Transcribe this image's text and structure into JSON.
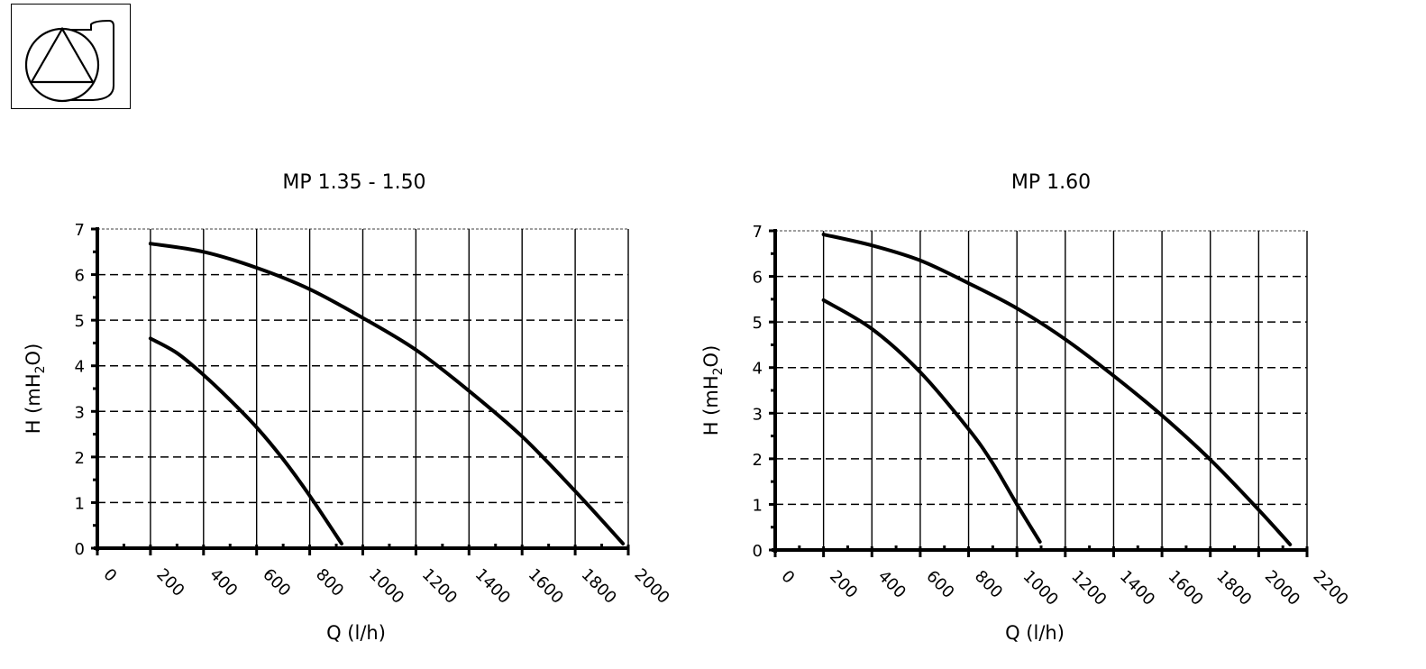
{
  "logo": {
    "icon": "pump-symbol-icon"
  },
  "chart_data": [
    {
      "type": "line",
      "title": "MP 1.35 - 1.50",
      "xlabel": "Q (l/h)",
      "ylabel_main": "H (mH",
      "ylabel_sub": "2",
      "ylabel_end": "O)",
      "xlim": [
        0,
        2000
      ],
      "ylim": [
        0,
        7
      ],
      "xticks": [
        0,
        200,
        400,
        600,
        800,
        1000,
        1200,
        1400,
        1600,
        1800,
        2000
      ],
      "yticks": [
        0,
        1,
        2,
        3,
        4,
        5,
        6,
        7
      ],
      "grid": true,
      "series": [
        {
          "x": [
            200,
            300,
            400,
            500,
            600,
            700,
            800,
            920
          ],
          "y": [
            4.6,
            4.28,
            3.8,
            3.25,
            2.65,
            1.95,
            1.15,
            0.1
          ]
        },
        {
          "x": [
            200,
            400,
            600,
            800,
            1000,
            1200,
            1400,
            1600,
            1800,
            1980
          ],
          "y": [
            6.68,
            6.5,
            6.15,
            5.68,
            5.05,
            4.35,
            3.45,
            2.45,
            1.25,
            0.1
          ]
        }
      ]
    },
    {
      "type": "line",
      "title": "MP 1.60",
      "xlabel": "Q (l/h)",
      "ylabel_main": "H (mH",
      "ylabel_sub": "2",
      "ylabel_end": "O)",
      "xlim": [
        0,
        2200
      ],
      "ylim": [
        0,
        7
      ],
      "xticks": [
        0,
        200,
        400,
        600,
        800,
        1000,
        1200,
        1400,
        1600,
        1800,
        2000,
        2200
      ],
      "yticks": [
        0,
        1,
        2,
        3,
        4,
        5,
        6,
        7
      ],
      "grid": true,
      "series": [
        {
          "x": [
            200,
            400,
            600,
            800,
            900,
            1000,
            1095
          ],
          "y": [
            5.48,
            4.85,
            3.9,
            2.65,
            1.9,
            1.0,
            0.18
          ]
        },
        {
          "x": [
            200,
            400,
            600,
            800,
            1000,
            1200,
            1400,
            1600,
            1800,
            2000,
            2130
          ],
          "y": [
            6.92,
            6.68,
            6.35,
            5.85,
            5.3,
            4.62,
            3.82,
            2.95,
            1.98,
            0.88,
            0.12
          ]
        }
      ]
    }
  ]
}
